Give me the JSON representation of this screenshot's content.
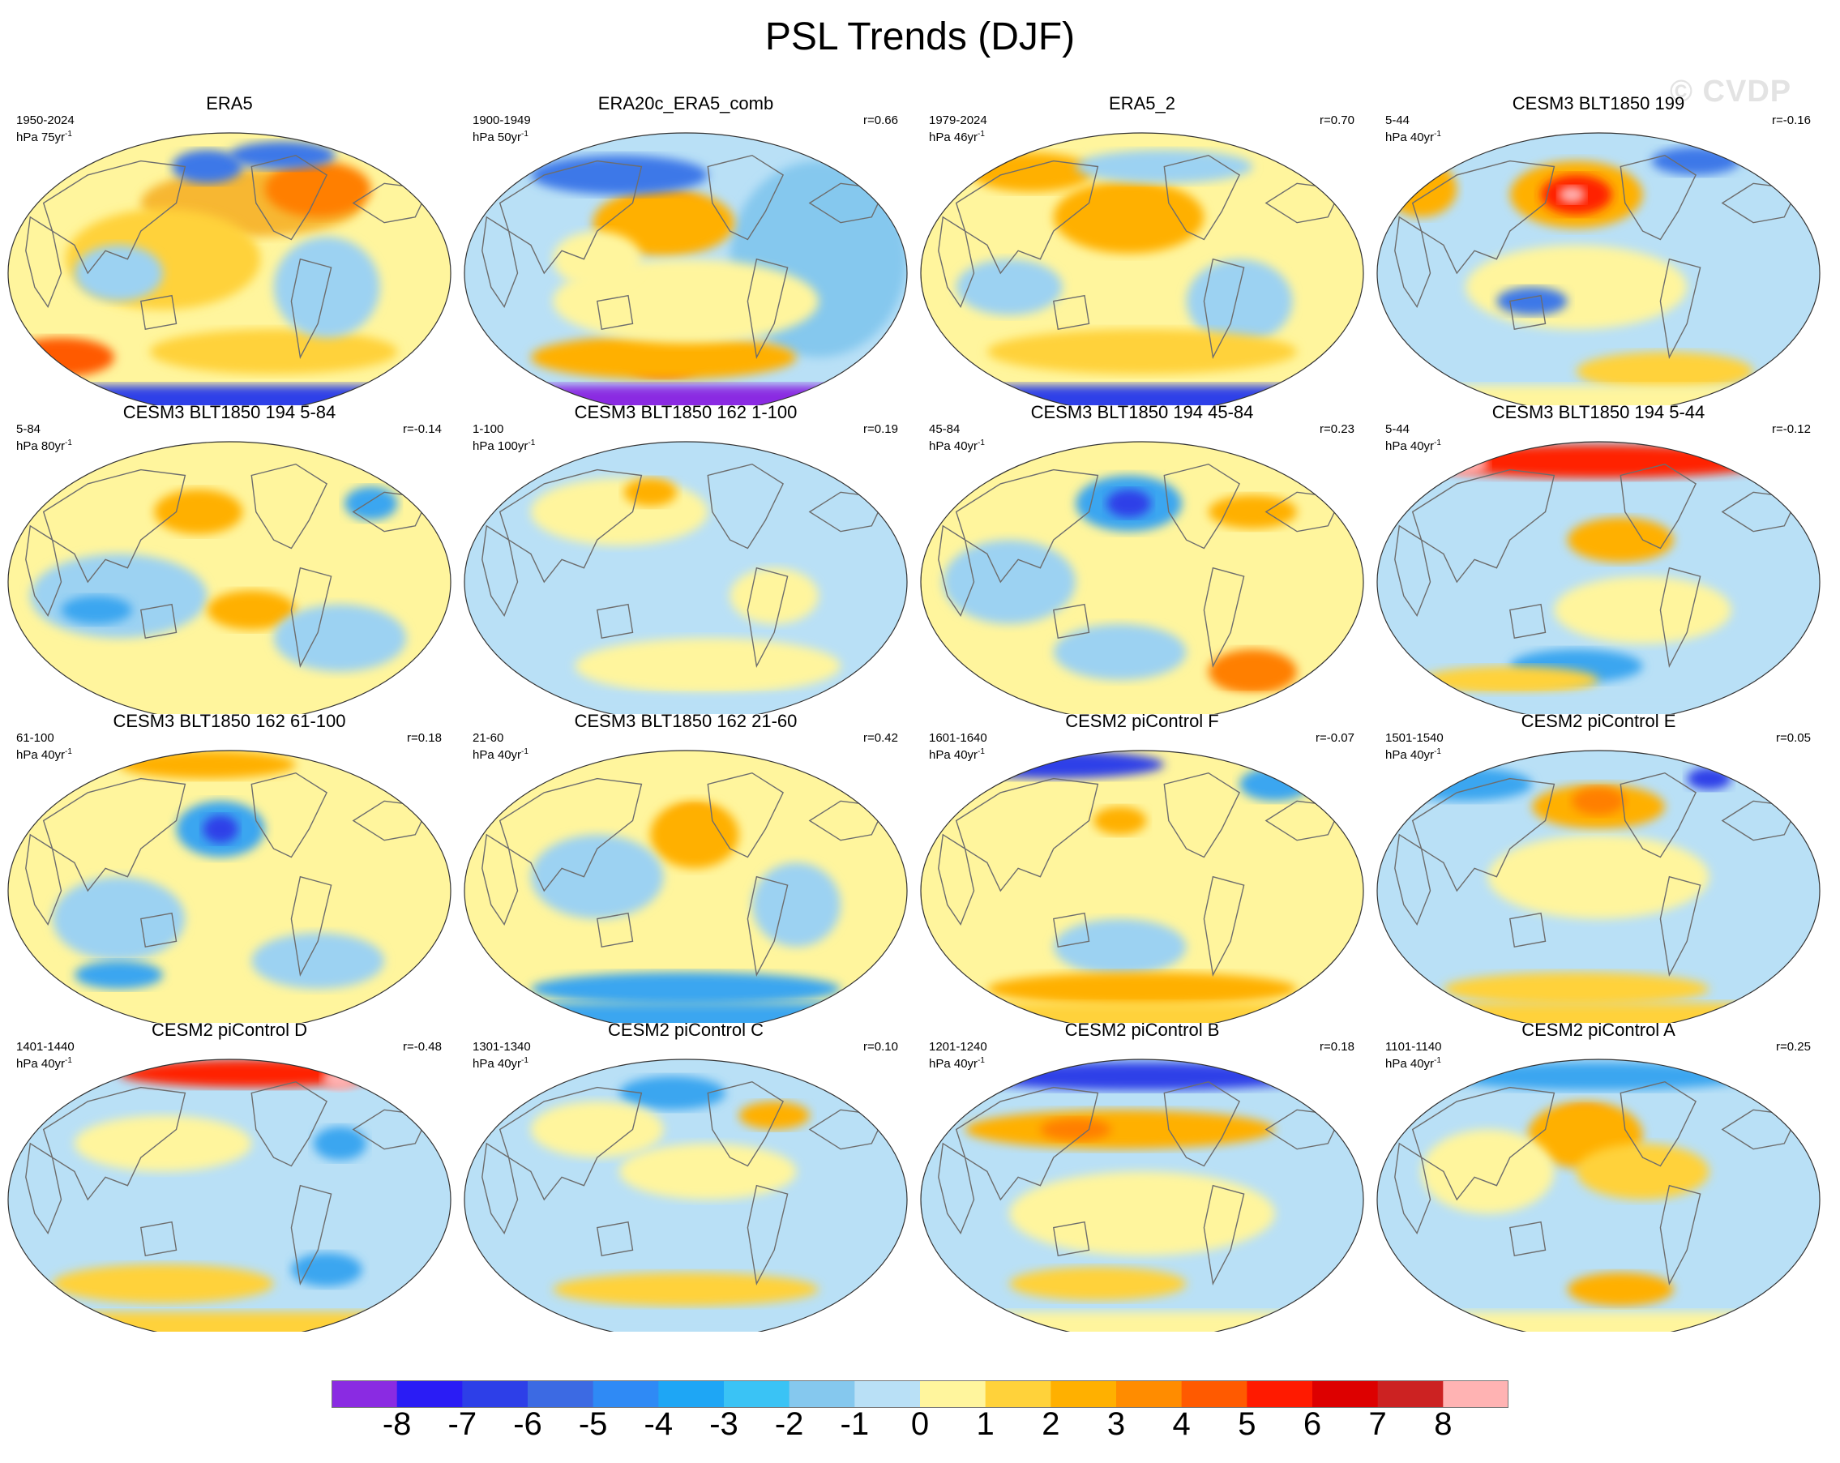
{
  "title": "PSL Trends (DJF)",
  "watermark": "© CVDP",
  "panels": [
    {
      "title": "ERA5",
      "years": "1950-2024",
      "units_base": "hPa 75yr",
      "units_sup": "-1",
      "r": "",
      "base": "#fff59d",
      "blobs": [
        [
          "#f7b733",
          0.55,
          0.25,
          0.25,
          0.12
        ],
        [
          "#ff7f00",
          0.7,
          0.2,
          0.12,
          0.1
        ],
        [
          "#ffd23a",
          0.35,
          0.45,
          0.22,
          0.18
        ],
        [
          "#ff5a00",
          0.12,
          0.8,
          0.12,
          0.07
        ],
        [
          "#ffd23a",
          0.6,
          0.78,
          0.28,
          0.08
        ],
        [
          "#3c78e8",
          0.45,
          0.12,
          0.08,
          0.06
        ],
        [
          "#3c78e8",
          0.62,
          0.08,
          0.12,
          0.05
        ],
        [
          "#9cd2f2",
          0.72,
          0.55,
          0.12,
          0.18
        ],
        [
          "#9cd2f2",
          0.25,
          0.5,
          0.1,
          0.1
        ]
      ],
      "south": "#2d3fe8"
    },
    {
      "title": "ERA20c_ERA5_comb",
      "years": "1900-1949",
      "units_base": "hPa 50yr",
      "units_sup": "-1",
      "r": "r=0.66",
      "base": "#b9e0f6",
      "blobs": [
        [
          "#85c8ee",
          0.8,
          0.45,
          0.2,
          0.35
        ],
        [
          "#ff3300",
          0.45,
          0.3,
          0.1,
          0.08
        ],
        [
          "#ffb000",
          0.45,
          0.32,
          0.16,
          0.12
        ],
        [
          "#ff3300",
          0.45,
          0.82,
          0.08,
          0.05
        ],
        [
          "#ffb000",
          0.45,
          0.8,
          0.3,
          0.08
        ],
        [
          "#fff59d",
          0.5,
          0.6,
          0.3,
          0.15
        ],
        [
          "#3c78e8",
          0.35,
          0.15,
          0.2,
          0.07
        ],
        [
          "#fff59d",
          0.3,
          0.45,
          0.1,
          0.1
        ]
      ],
      "south": "#8a2be2"
    },
    {
      "title": "ERA5_2",
      "years": "1979-2024",
      "units_base": "hPa 46yr",
      "units_sup": "-1",
      "r": "r=0.70",
      "base": "#fff59d",
      "blobs": [
        [
          "#ff5a00",
          0.47,
          0.3,
          0.1,
          0.08
        ],
        [
          "#ffb000",
          0.47,
          0.3,
          0.17,
          0.13
        ],
        [
          "#ffb000",
          0.25,
          0.14,
          0.14,
          0.07
        ],
        [
          "#9cd2f2",
          0.55,
          0.12,
          0.2,
          0.06
        ],
        [
          "#9cd2f2",
          0.72,
          0.6,
          0.12,
          0.15
        ],
        [
          "#ffd23a",
          0.5,
          0.78,
          0.35,
          0.08
        ],
        [
          "#9cd2f2",
          0.2,
          0.55,
          0.12,
          0.1
        ]
      ],
      "south": "#2d3fe8"
    },
    {
      "title": "CESM3 BLT1850 199",
      "years": "5-44",
      "units_base": "hPa 40yr",
      "units_sup": "-1",
      "r": "r=-0.16",
      "base": "#b9e0f6",
      "blobs": [
        [
          "#ffb000",
          0.45,
          0.22,
          0.15,
          0.12
        ],
        [
          "#ff2200",
          0.45,
          0.22,
          0.08,
          0.07
        ],
        [
          "#ffb3b3",
          0.44,
          0.22,
          0.03,
          0.03
        ],
        [
          "#ffb000",
          0.1,
          0.2,
          0.08,
          0.1
        ],
        [
          "#3c78e8",
          0.72,
          0.1,
          0.1,
          0.05
        ],
        [
          "#ffd23a",
          0.65,
          0.85,
          0.2,
          0.07
        ],
        [
          "#fff59d",
          0.45,
          0.55,
          0.25,
          0.15
        ],
        [
          "#3c78e8",
          0.35,
          0.6,
          0.08,
          0.05
        ]
      ],
      "south": "#fff59d"
    },
    {
      "title": "CESM3 BLT1850 194 5-84",
      "years": "5-84",
      "units_base": "hPa 80yr",
      "units_sup": "-1",
      "r": "r=-0.14",
      "base": "#fff59d",
      "blobs": [
        [
          "#ffb000",
          0.43,
          0.25,
          0.1,
          0.08
        ],
        [
          "#9cd2f2",
          0.25,
          0.55,
          0.2,
          0.15
        ],
        [
          "#3aa6f0",
          0.2,
          0.6,
          0.08,
          0.05
        ],
        [
          "#ffb000",
          0.55,
          0.6,
          0.1,
          0.07
        ],
        [
          "#3aa6f0",
          0.82,
          0.22,
          0.06,
          0.06
        ],
        [
          "#9cd2f2",
          0.75,
          0.7,
          0.15,
          0.12
        ]
      ],
      "south": "#fff59d"
    },
    {
      "title": "CESM3 BLT1850 162 1-100",
      "years": "1-100",
      "units_base": "hPa 100yr",
      "units_sup": "-1",
      "r": "r=0.19",
      "base": "#b9e0f6",
      "blobs": [
        [
          "#fff59d",
          0.35,
          0.25,
          0.2,
          0.12
        ],
        [
          "#ffb000",
          0.42,
          0.18,
          0.06,
          0.05
        ],
        [
          "#fff59d",
          0.55,
          0.8,
          0.3,
          0.1
        ],
        [
          "#fff59d",
          0.7,
          0.55,
          0.1,
          0.1
        ]
      ],
      "south": "#b9e0f6"
    },
    {
      "title": "CESM3 BLT1850 194 45-84",
      "years": "45-84",
      "units_base": "hPa 40yr",
      "units_sup": "-1",
      "r": "r=0.23",
      "base": "#fff59d",
      "blobs": [
        [
          "#3aa6f0",
          0.47,
          0.22,
          0.12,
          0.1
        ],
        [
          "#2d3fe8",
          0.47,
          0.22,
          0.05,
          0.05
        ],
        [
          "#9cd2f2",
          0.2,
          0.5,
          0.15,
          0.15
        ],
        [
          "#ff7f00",
          0.75,
          0.82,
          0.1,
          0.08
        ],
        [
          "#9cd2f2",
          0.45,
          0.75,
          0.15,
          0.1
        ],
        [
          "#ffb000",
          0.75,
          0.25,
          0.1,
          0.06
        ]
      ],
      "south": "#fff59d"
    },
    {
      "title": "CESM3 BLT1850 194 5-44",
      "years": "5-44",
      "units_base": "hPa 40yr",
      "units_sup": "-1",
      "r": "r=-0.12",
      "base": "#b9e0f6",
      "blobs": [
        [
          "#ff2200",
          0.5,
          0.07,
          0.4,
          0.06
        ],
        [
          "#ffb3b3",
          0.2,
          0.08,
          0.05,
          0.04
        ],
        [
          "#ffb000",
          0.55,
          0.35,
          0.12,
          0.08
        ],
        [
          "#3aa6f0",
          0.45,
          0.8,
          0.15,
          0.06
        ],
        [
          "#fff59d",
          0.6,
          0.6,
          0.2,
          0.12
        ],
        [
          "#ffd23a",
          0.3,
          0.85,
          0.2,
          0.05
        ]
      ],
      "south": "#b9e0f6"
    },
    {
      "title": "CESM3 BLT1850 162 61-100",
      "years": "61-100",
      "units_base": "hPa 40yr",
      "units_sup": "-1",
      "r": "r=0.18",
      "base": "#fff59d",
      "blobs": [
        [
          "#3aa6f0",
          0.48,
          0.28,
          0.1,
          0.1
        ],
        [
          "#2d3fe8",
          0.48,
          0.28,
          0.04,
          0.05
        ],
        [
          "#9cd2f2",
          0.25,
          0.6,
          0.15,
          0.15
        ],
        [
          "#ffb000",
          0.45,
          0.05,
          0.2,
          0.05
        ],
        [
          "#9cd2f2",
          0.7,
          0.75,
          0.15,
          0.1
        ],
        [
          "#3aa6f0",
          0.25,
          0.8,
          0.1,
          0.05
        ]
      ],
      "south": "#fff59d"
    },
    {
      "title": "CESM3 BLT1850 162 21-60",
      "years": "21-60",
      "units_base": "hPa 40yr",
      "units_sup": "-1",
      "r": "r=0.42",
      "base": "#fff59d",
      "blobs": [
        [
          "#ff7f00",
          0.52,
          0.28,
          0.06,
          0.08
        ],
        [
          "#ffb000",
          0.52,
          0.3,
          0.1,
          0.12
        ],
        [
          "#9cd2f2",
          0.3,
          0.45,
          0.15,
          0.15
        ],
        [
          "#3aa6f0",
          0.5,
          0.85,
          0.35,
          0.06
        ],
        [
          "#9cd2f2",
          0.75,
          0.55,
          0.1,
          0.15
        ]
      ],
      "south": "#3aa6f0"
    },
    {
      "title": "CESM2 piControl F",
      "years": "1601-1640",
      "units_base": "hPa 40yr",
      "units_sup": "-1",
      "r": "r=-0.07",
      "base": "#fff59d",
      "blobs": [
        [
          "#2d3fe8",
          0.3,
          0.05,
          0.25,
          0.05
        ],
        [
          "#3aa6f0",
          0.8,
          0.12,
          0.08,
          0.06
        ],
        [
          "#9cd2f2",
          0.45,
          0.7,
          0.15,
          0.1
        ],
        [
          "#ffb000",
          0.5,
          0.85,
          0.35,
          0.06
        ],
        [
          "#ffb000",
          0.45,
          0.25,
          0.06,
          0.05
        ]
      ],
      "south": "#ffd23a"
    },
    {
      "title": "CESM2 piControl E",
      "years": "1501-1540",
      "units_base": "hPa 40yr",
      "units_sup": "-1",
      "r": "r=0.05",
      "base": "#b9e0f6",
      "blobs": [
        [
          "#ffb000",
          0.5,
          0.2,
          0.15,
          0.08
        ],
        [
          "#ff7f00",
          0.5,
          0.18,
          0.06,
          0.05
        ],
        [
          "#3aa6f0",
          0.2,
          0.12,
          0.15,
          0.06
        ],
        [
          "#2d3fe8",
          0.75,
          0.1,
          0.05,
          0.04
        ],
        [
          "#fff59d",
          0.5,
          0.45,
          0.25,
          0.15
        ],
        [
          "#ffd23a",
          0.45,
          0.85,
          0.3,
          0.06
        ]
      ],
      "south": "#ffd23a"
    },
    {
      "title": "CESM2 piControl D",
      "years": "1401-1440",
      "units_base": "hPa 40yr",
      "units_sup": "-1",
      "r": "r=-0.48",
      "base": "#b9e0f6",
      "blobs": [
        [
          "#ff2200",
          0.55,
          0.05,
          0.3,
          0.05
        ],
        [
          "#ffb3b3",
          0.75,
          0.07,
          0.04,
          0.04
        ],
        [
          "#fff59d",
          0.35,
          0.3,
          0.2,
          0.1
        ],
        [
          "#ffd23a",
          0.35,
          0.8,
          0.25,
          0.07
        ],
        [
          "#3aa6f0",
          0.75,
          0.3,
          0.06,
          0.06
        ],
        [
          "#3aa6f0",
          0.72,
          0.75,
          0.08,
          0.06
        ]
      ],
      "south": "#ffd23a"
    },
    {
      "title": "CESM2 piControl C",
      "years": "1301-1340",
      "units_base": "hPa 40yr",
      "units_sup": "-1",
      "r": "r=0.10",
      "base": "#b9e0f6",
      "blobs": [
        [
          "#3aa6f0",
          0.47,
          0.12,
          0.12,
          0.06
        ],
        [
          "#fff59d",
          0.3,
          0.25,
          0.15,
          0.1
        ],
        [
          "#ffd23a",
          0.5,
          0.82,
          0.3,
          0.06
        ],
        [
          "#fff59d",
          0.55,
          0.4,
          0.2,
          0.1
        ],
        [
          "#ffb000",
          0.7,
          0.2,
          0.08,
          0.05
        ]
      ],
      "south": "#b9e0f6"
    },
    {
      "title": "CESM2 piControl B",
      "years": "1201-1240",
      "units_base": "hPa 40yr",
      "units_sup": "-1",
      "r": "r=0.18",
      "base": "#b9e0f6",
      "blobs": [
        [
          "#2d3fe8",
          0.5,
          0.06,
          0.4,
          0.05
        ],
        [
          "#ffb000",
          0.45,
          0.25,
          0.35,
          0.07
        ],
        [
          "#ff7f00",
          0.35,
          0.25,
          0.08,
          0.04
        ],
        [
          "#fff59d",
          0.5,
          0.55,
          0.3,
          0.15
        ],
        [
          "#ffd23a",
          0.4,
          0.8,
          0.2,
          0.06
        ]
      ],
      "south": "#fff59d"
    },
    {
      "title": "CESM2 piControl A",
      "years": "1101-1140",
      "units_base": "hPa 40yr",
      "units_sup": "-1",
      "r": "r=0.25",
      "base": "#b9e0f6",
      "blobs": [
        [
          "#ff5a00",
          0.47,
          0.25,
          0.07,
          0.08
        ],
        [
          "#ffb000",
          0.47,
          0.27,
          0.13,
          0.12
        ],
        [
          "#3aa6f0",
          0.5,
          0.06,
          0.35,
          0.05
        ],
        [
          "#fff59d",
          0.25,
          0.4,
          0.15,
          0.15
        ],
        [
          "#ffb000",
          0.55,
          0.82,
          0.12,
          0.06
        ],
        [
          "#ffd23a",
          0.6,
          0.4,
          0.15,
          0.1
        ]
      ],
      "south": "#fff59d"
    }
  ],
  "colorbar": {
    "colors": [
      "#8a2be2",
      "#2a1cf5",
      "#2d3fe8",
      "#3c6ae3",
      "#2f8af5",
      "#1ea6f5",
      "#3ac3f5",
      "#85c8ee",
      "#b9e0f6",
      "#fff59d",
      "#ffd23a",
      "#ffb000",
      "#ff8c00",
      "#ff5a00",
      "#ff1a00",
      "#dd0000",
      "#cc2222",
      "#ffb3b3"
    ],
    "labels": [
      "-8",
      "-7",
      "-6",
      "-5",
      "-4",
      "-3",
      "-2",
      "-1",
      "0",
      "1",
      "2",
      "3",
      "4",
      "5",
      "6",
      "7",
      "8"
    ]
  }
}
